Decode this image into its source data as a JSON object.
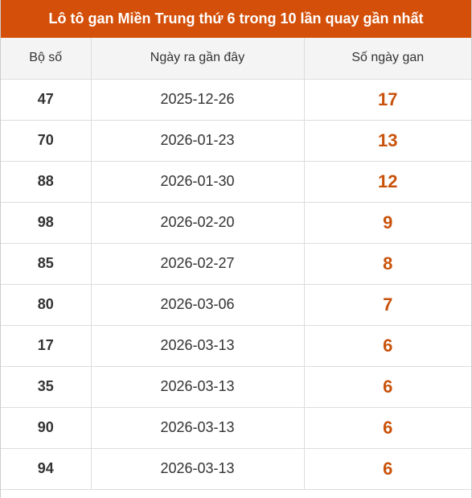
{
  "header": {
    "title": "Lô tô gan Miền Trung thứ 6 trong 10 lần quay gần nhất"
  },
  "table": {
    "columns": [
      "Bộ số",
      "Ngày ra gần đây",
      "Số ngày gan"
    ],
    "rows": [
      [
        "47",
        "2025-12-26",
        17
      ],
      [
        "70",
        "2026-01-23",
        13
      ],
      [
        "88",
        "2026-01-30",
        12
      ],
      [
        "98",
        "2026-02-20",
        9
      ],
      [
        "85",
        "2026-02-27",
        8
      ],
      [
        "80",
        "2026-03-06",
        7
      ],
      [
        "17",
        "2026-03-13",
        6
      ],
      [
        "35",
        "2026-03-13",
        6
      ],
      [
        "90",
        "2026-03-13",
        6
      ],
      [
        "94",
        "2026-03-13",
        6
      ]
    ]
  }
}
